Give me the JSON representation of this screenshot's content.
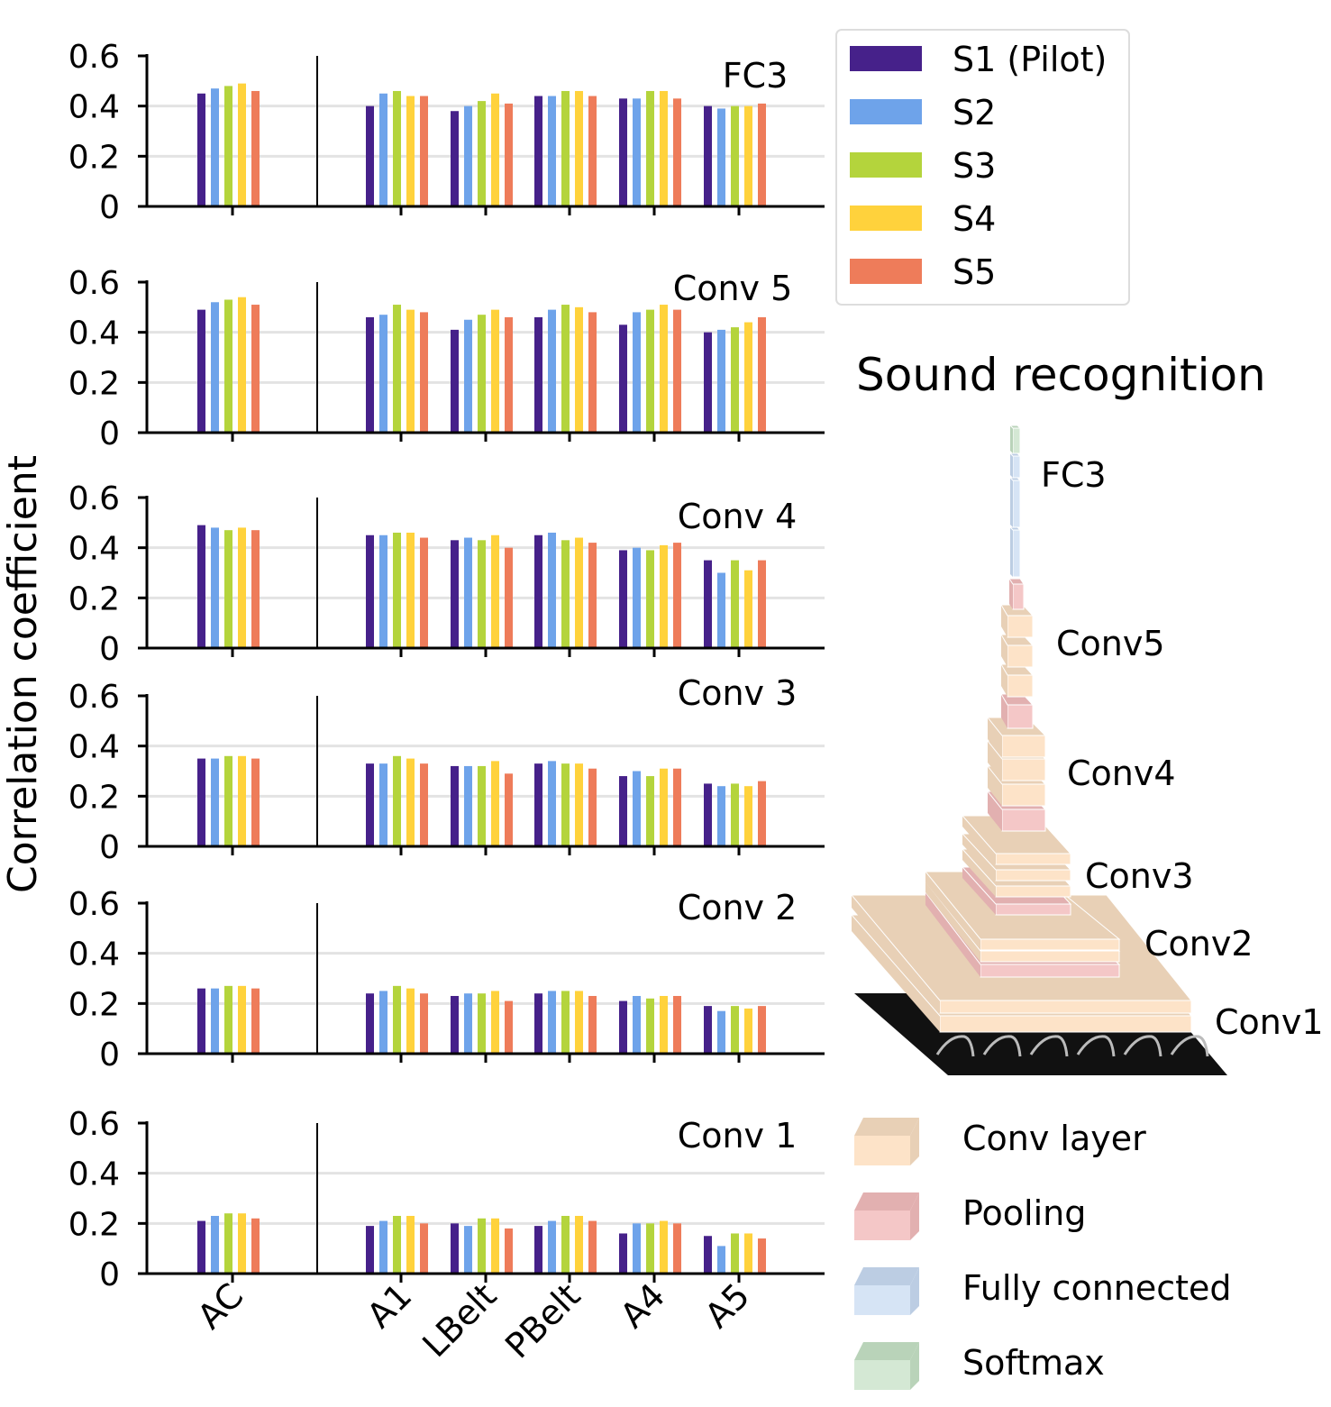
{
  "chart_data": {
    "type": "bar",
    "ylabel": "Correlation coefficient",
    "ylim": [
      0,
      0.6
    ],
    "yticks": [
      "0",
      "0.2",
      "0.4",
      "0.6"
    ],
    "grid": "horizontal",
    "categories": [
      "AC",
      "A1",
      "LBelt",
      "PBelt",
      "A4",
      "A5"
    ],
    "legend": {
      "placement": "top-right",
      "series": [
        "S1 (Pilot)",
        "S2",
        "S3",
        "S4",
        "S5"
      ]
    },
    "colors": [
      "#46218a",
      "#6ea3ea",
      "#b4d43c",
      "#ffd23c",
      "#ee7c5a"
    ],
    "panels": [
      {
        "label": "FC3",
        "values": [
          [
            0.45,
            0.47,
            0.48,
            0.49,
            0.46
          ],
          [
            0.4,
            0.45,
            0.46,
            0.44,
            0.44
          ],
          [
            0.38,
            0.4,
            0.42,
            0.45,
            0.41
          ],
          [
            0.44,
            0.44,
            0.46,
            0.46,
            0.44
          ],
          [
            0.43,
            0.43,
            0.46,
            0.46,
            0.43
          ],
          [
            0.4,
            0.39,
            0.4,
            0.4,
            0.41
          ]
        ]
      },
      {
        "label": "Conv 5",
        "values": [
          [
            0.49,
            0.52,
            0.53,
            0.54,
            0.51
          ],
          [
            0.46,
            0.47,
            0.51,
            0.49,
            0.48
          ],
          [
            0.41,
            0.45,
            0.47,
            0.49,
            0.46
          ],
          [
            0.46,
            0.49,
            0.51,
            0.5,
            0.48
          ],
          [
            0.43,
            0.48,
            0.49,
            0.51,
            0.49
          ],
          [
            0.4,
            0.41,
            0.42,
            0.44,
            0.46
          ]
        ]
      },
      {
        "label": "Conv 4",
        "values": [
          [
            0.49,
            0.48,
            0.47,
            0.48,
            0.47
          ],
          [
            0.45,
            0.45,
            0.46,
            0.46,
            0.44
          ],
          [
            0.43,
            0.44,
            0.43,
            0.45,
            0.4
          ],
          [
            0.45,
            0.46,
            0.43,
            0.44,
            0.42
          ],
          [
            0.39,
            0.4,
            0.39,
            0.41,
            0.42
          ],
          [
            0.35,
            0.3,
            0.35,
            0.31,
            0.35
          ]
        ]
      },
      {
        "label": "Conv 3",
        "values": [
          [
            0.35,
            0.35,
            0.36,
            0.36,
            0.35
          ],
          [
            0.33,
            0.33,
            0.36,
            0.35,
            0.33
          ],
          [
            0.32,
            0.32,
            0.32,
            0.34,
            0.29
          ],
          [
            0.33,
            0.34,
            0.33,
            0.33,
            0.31
          ],
          [
            0.28,
            0.3,
            0.28,
            0.31,
            0.31
          ],
          [
            0.25,
            0.24,
            0.25,
            0.24,
            0.26
          ]
        ]
      },
      {
        "label": "Conv 2",
        "values": [
          [
            0.26,
            0.26,
            0.27,
            0.27,
            0.26
          ],
          [
            0.24,
            0.25,
            0.27,
            0.26,
            0.24
          ],
          [
            0.23,
            0.24,
            0.24,
            0.25,
            0.21
          ],
          [
            0.24,
            0.25,
            0.25,
            0.25,
            0.23
          ],
          [
            0.21,
            0.23,
            0.22,
            0.23,
            0.23
          ],
          [
            0.19,
            0.17,
            0.19,
            0.18,
            0.19
          ]
        ]
      },
      {
        "label": "Conv 1",
        "values": [
          [
            0.21,
            0.23,
            0.24,
            0.24,
            0.22
          ],
          [
            0.19,
            0.21,
            0.23,
            0.23,
            0.2
          ],
          [
            0.2,
            0.19,
            0.22,
            0.22,
            0.18
          ],
          [
            0.19,
            0.21,
            0.23,
            0.23,
            0.21
          ],
          [
            0.16,
            0.2,
            0.2,
            0.21,
            0.2
          ],
          [
            0.15,
            0.11,
            0.16,
            0.16,
            0.14
          ]
        ]
      }
    ]
  },
  "diagram": {
    "title": "Sound recognition",
    "layer_labels": [
      "FC3",
      "Conv5",
      "Conv4",
      "Conv3",
      "Conv2",
      "Conv1"
    ],
    "legend": [
      {
        "label": "Conv layer",
        "color": "#fde3c8",
        "side": "#e8d0b6"
      },
      {
        "label": "Pooling",
        "color": "#f4c7c7",
        "side": "#e2b0b0"
      },
      {
        "label": "Fully connected",
        "color": "#d6e4f5",
        "side": "#bccde3"
      },
      {
        "label": "Softmax",
        "color": "#d4e8d4",
        "side": "#b9d3b9"
      }
    ]
  }
}
